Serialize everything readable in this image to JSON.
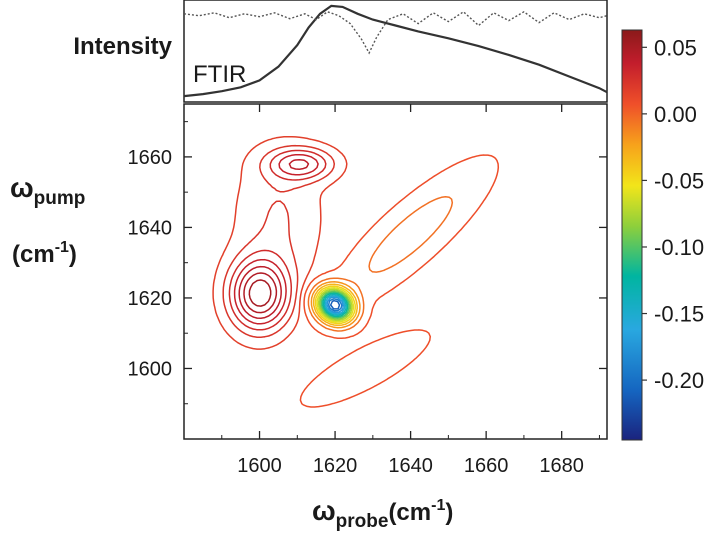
{
  "chart_data": [
    {
      "type": "line",
      "panel": "top",
      "ylabel": "Intensity",
      "annotation": "FTIR",
      "xlim": [
        1580,
        1692
      ],
      "series": [
        {
          "name": "FTIR",
          "style": "solid",
          "x": [
            1580,
            1585,
            1590,
            1595,
            1600,
            1605,
            1610,
            1613,
            1616,
            1619,
            1622,
            1626,
            1630,
            1636,
            1642,
            1650,
            1658,
            1666,
            1674,
            1682,
            1690,
            1692
          ],
          "y": [
            0.04,
            0.06,
            0.09,
            0.13,
            0.2,
            0.34,
            0.56,
            0.74,
            0.88,
            0.96,
            0.95,
            0.88,
            0.82,
            0.76,
            0.7,
            0.63,
            0.55,
            0.46,
            0.36,
            0.24,
            0.12,
            0.08
          ]
        },
        {
          "style": "dotted",
          "x": [
            1580,
            1584,
            1588,
            1592,
            1596,
            1600,
            1604,
            1608,
            1612,
            1615,
            1618,
            1621,
            1624,
            1627,
            1629,
            1631,
            1634,
            1638,
            1642,
            1646,
            1650,
            1654,
            1658,
            1662,
            1666,
            1670,
            1674,
            1678,
            1682,
            1686,
            1690,
            1692
          ],
          "y": [
            0.88,
            0.86,
            0.89,
            0.84,
            0.88,
            0.85,
            0.89,
            0.83,
            0.88,
            0.82,
            0.9,
            0.86,
            0.78,
            0.62,
            0.48,
            0.64,
            0.82,
            0.88,
            0.78,
            0.89,
            0.8,
            0.9,
            0.76,
            0.89,
            0.81,
            0.9,
            0.79,
            0.89,
            0.82,
            0.88,
            0.84,
            0.86
          ]
        }
      ]
    },
    {
      "type": "contour",
      "panel": "main",
      "xlabel": "ωprobe (cm-1)",
      "xlabel_parts": {
        "symbol": "ω",
        "sub": "probe",
        "unit": "(cm",
        "sup": "-1",
        "close": ")"
      },
      "ylabel_parts": {
        "symbol": "ω",
        "sub": "pump",
        "unit": "(cm",
        "sup": "-1",
        "close": ")"
      },
      "xlim": [
        1580,
        1692
      ],
      "ylim": [
        1580,
        1675
      ],
      "xticks": [
        1600,
        1620,
        1640,
        1660,
        1680
      ],
      "yticks": [
        1600,
        1620,
        1640,
        1660
      ],
      "peaks": [
        {
          "sign": "negative",
          "x": 1620,
          "y": 1618,
          "sx": 3.0,
          "sy": 3.5,
          "rot": 45,
          "amp": -0.225
        },
        {
          "sign": "negative",
          "x": 1640,
          "y": 1638,
          "sx": 16,
          "sy": 4.5,
          "rot": 44,
          "amp": -0.03
        },
        {
          "sign": "negative",
          "x": 1628,
          "y": 1600,
          "sx": 14,
          "sy": 4.0,
          "rot": 30,
          "amp": -0.012
        },
        {
          "sign": "positive",
          "x": 1600,
          "y": 1621,
          "sx": 5.5,
          "sy": 7.0,
          "rot": 0,
          "amp": 0.05
        },
        {
          "sign": "positive",
          "x": 1611,
          "y": 1658,
          "sx": 6.0,
          "sy": 3.2,
          "rot": 0,
          "amp": 0.03
        },
        {
          "sign": "positive",
          "x": 1605,
          "y": 1643,
          "sx": 8.0,
          "sy": 14.0,
          "rot": 0,
          "amp": 0.012
        }
      ],
      "colorbar": {
        "range": [
          -0.245,
          0.063
        ],
        "ticks": [
          "0.05",
          "0.00",
          "-0.05",
          "-0.10",
          "-0.15",
          "-0.20"
        ],
        "tick_values": [
          0.05,
          0.0,
          -0.05,
          -0.1,
          -0.15,
          -0.2
        ],
        "colormap": [
          "#1a237e",
          "#1565c0",
          "#29a8e0",
          "#00b5a0",
          "#8ccf3c",
          "#f2e51a",
          "#f7a21b",
          "#ef4f2a",
          "#c21d2c",
          "#8b1a1a"
        ]
      }
    }
  ]
}
